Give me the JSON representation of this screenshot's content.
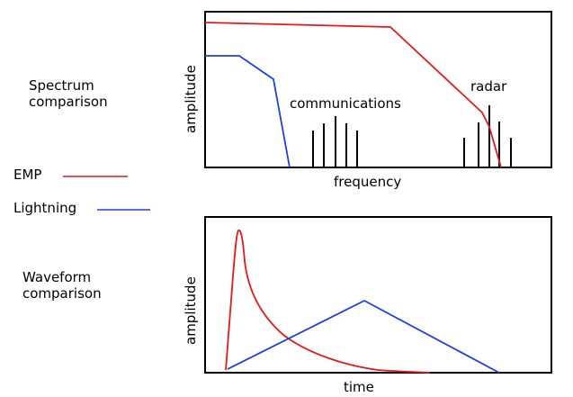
{
  "labels": {
    "spectrum_line1": "Spectrum",
    "spectrum_line2": "comparison",
    "waveform_line1": "Waveform",
    "waveform_line2": "comparison"
  },
  "legend": {
    "emp": {
      "label": "EMP",
      "color": "#e31a1c"
    },
    "lightning": {
      "label": "Lightning",
      "color": "#1f3fe0"
    }
  },
  "spectrum_plot": {
    "ylabel": "amplitude",
    "xlabel": "frequency",
    "annotations": {
      "communications": "communications",
      "radar": "radar"
    }
  },
  "waveform_plot": {
    "ylabel": "amplitude",
    "xlabel": "time"
  },
  "colors": {
    "emp": "#e31a1c",
    "lightning": "#1f3fe0",
    "axis": "#000000"
  }
}
